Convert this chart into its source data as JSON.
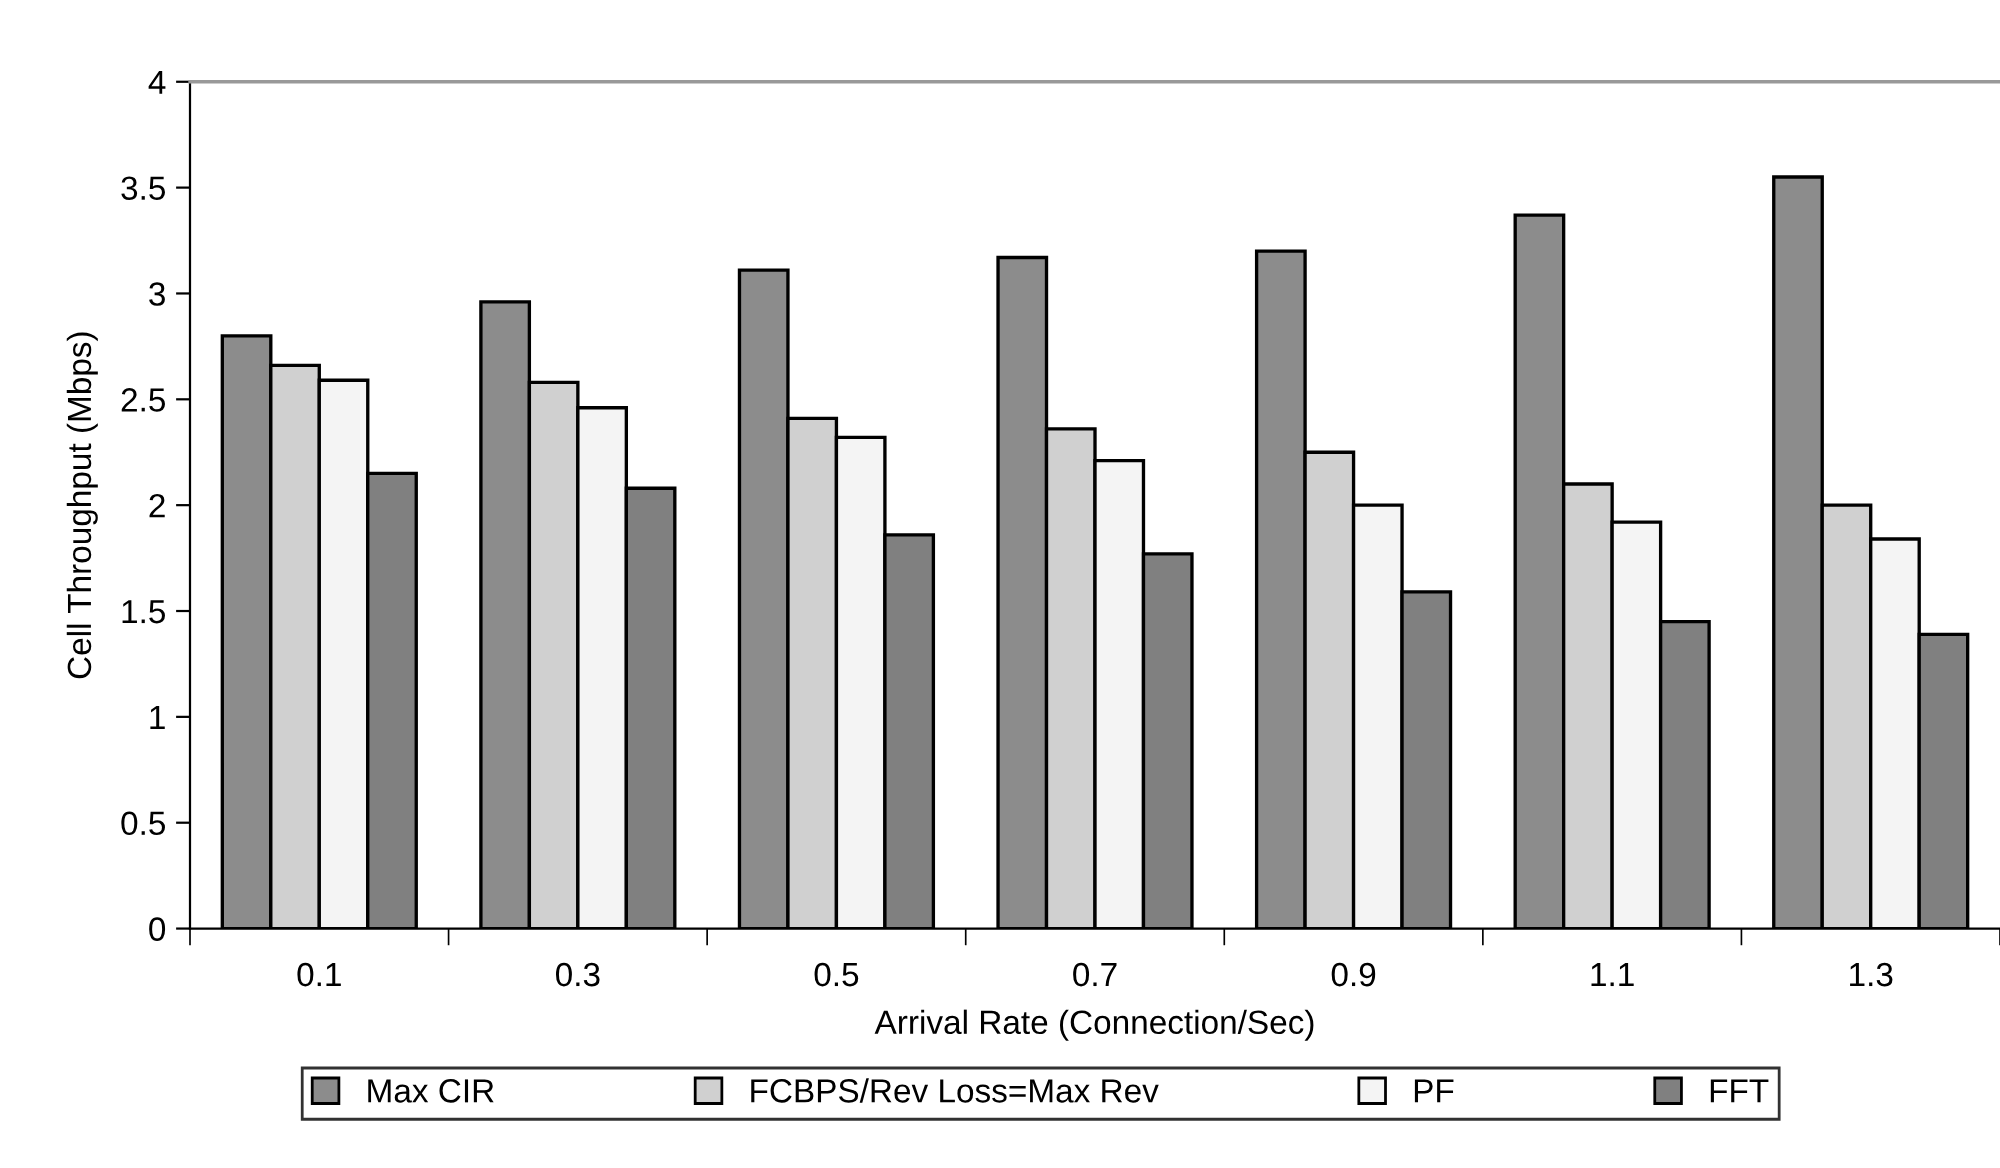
{
  "chart_data": {
    "type": "bar",
    "xlabel": "Arrival Rate (Connection/Sec)",
    "ylabel": "Cell Throughput (Mbps)",
    "categories": [
      "0.1",
      "0.3",
      "0.5",
      "0.7",
      "0.9",
      "1.1",
      "1.3"
    ],
    "series": [
      {
        "name": "Max CIR",
        "color": "#8c8c8c",
        "values": [
          2.8,
          2.96,
          3.11,
          3.17,
          3.2,
          3.37,
          3.55
        ]
      },
      {
        "name": "FCBPS/Rev Loss=Max Rev",
        "color": "#d0d0d0",
        "values": [
          2.66,
          2.58,
          2.41,
          2.36,
          2.25,
          2.1,
          2.0
        ]
      },
      {
        "name": "PF",
        "color": "#f4f4f4",
        "values": [
          2.59,
          2.46,
          2.32,
          2.21,
          2.0,
          1.92,
          1.84
        ]
      },
      {
        "name": "FFT",
        "color": "#808080",
        "values": [
          2.15,
          2.08,
          1.86,
          1.77,
          1.59,
          1.45,
          1.39
        ]
      }
    ],
    "ylim": [
      0,
      4
    ],
    "yticks": [
      0,
      0.5,
      1,
      1.5,
      2,
      2.5,
      3,
      3.5,
      4
    ],
    "grid": false,
    "legend": "bottom"
  }
}
